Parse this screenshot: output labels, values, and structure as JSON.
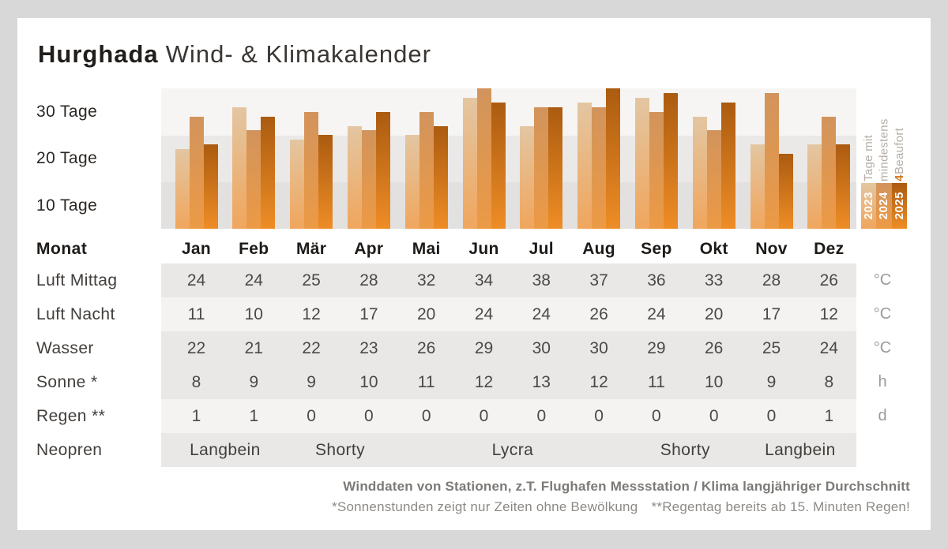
{
  "title": {
    "city": "Hurghada",
    "subtitle": "Wind- & Klimakalender"
  },
  "chart_data": {
    "type": "bar",
    "categories": [
      "Jan",
      "Feb",
      "Mär",
      "Apr",
      "Mai",
      "Jun",
      "Jul",
      "Aug",
      "Sep",
      "Okt",
      "Nov",
      "Dez"
    ],
    "series": [
      {
        "name": "2023",
        "color_top": "#e3c6a2",
        "color_bottom": "#f0a65d",
        "values": [
          17,
          26,
          19,
          22,
          20,
          28,
          22,
          27,
          28,
          24,
          18,
          18
        ]
      },
      {
        "name": "2024",
        "color_top": "#d2945c",
        "color_bottom": "#ec9a45",
        "values": [
          24,
          21,
          25,
          21,
          25,
          30,
          26,
          26,
          25,
          21,
          29,
          24
        ]
      },
      {
        "name": "2025",
        "color_top": "#ab5b10",
        "color_bottom": "#ee8d26",
        "values": [
          18,
          24,
          20,
          25,
          22,
          27,
          26,
          30,
          29,
          27,
          16,
          18
        ]
      }
    ],
    "ylabel": "Tage mit mindestens 4 Beaufort",
    "ytick_labels": [
      "30 Tage",
      "20 Tage",
      "10 Tage"
    ],
    "ylim": [
      0,
      30
    ],
    "grid": "banded-background",
    "legend_position": "right"
  },
  "chart_caption": {
    "line1": "Tage mit",
    "line2": "mindestens",
    "accent": "4",
    "line3_rest": " Beaufort"
  },
  "table": {
    "header_label": "Monat",
    "rows": [
      {
        "label": "Luft Mittag",
        "unit": "°C",
        "shade": "dark",
        "values": [
          24,
          24,
          25,
          28,
          32,
          34,
          38,
          37,
          36,
          33,
          28,
          26
        ]
      },
      {
        "label": "Luft Nacht",
        "unit": "°C",
        "shade": "light",
        "values": [
          11,
          10,
          12,
          17,
          20,
          24,
          24,
          26,
          24,
          20,
          17,
          12
        ]
      },
      {
        "label": "Wasser",
        "unit": "°C",
        "shade": "dark",
        "values": [
          22,
          21,
          22,
          23,
          26,
          29,
          30,
          30,
          29,
          26,
          25,
          24
        ]
      },
      {
        "label": "Sonne *",
        "unit": "h",
        "shade": "dark",
        "values": [
          8,
          9,
          9,
          10,
          11,
          12,
          13,
          12,
          11,
          10,
          9,
          8
        ]
      },
      {
        "label": "Regen **",
        "unit": "d",
        "shade": "light",
        "values": [
          1,
          1,
          0,
          0,
          0,
          0,
          0,
          0,
          0,
          0,
          0,
          1
        ]
      }
    ],
    "neopren_row": {
      "label": "Neopren",
      "shade": "dark",
      "spans": [
        {
          "text": "Langbein",
          "start_col": 0,
          "span_cols": 2
        },
        {
          "text": "Shorty",
          "start_col": 2,
          "span_cols": 2
        },
        {
          "text": "Lycra",
          "start_col": 5,
          "span_cols": 2
        },
        {
          "text": "Shorty",
          "start_col": 8,
          "span_cols": 2
        },
        {
          "text": "Langbein",
          "start_col": 10,
          "span_cols": 2
        }
      ]
    }
  },
  "footer": {
    "line1": "Winddaten von Stationen, z.T. Flughafen Messstation / Klima langjähriger Durchschnitt",
    "line2": "*Sonnenstunden zeigt nur Zeiten ohne Bewölkung **Regentag bereits ab 15. Minuten Regen!"
  },
  "colors": {
    "accent_orange": "#d0741f",
    "band_top": "#f6f5f3",
    "band_mid": "#ebe9e7",
    "band_bottom": "#e3e1df",
    "row_dark": "#e9e8e6",
    "row_light": "#f4f3f1",
    "page_background": "#d8d8d8",
    "card_background": "#ffffff"
  }
}
